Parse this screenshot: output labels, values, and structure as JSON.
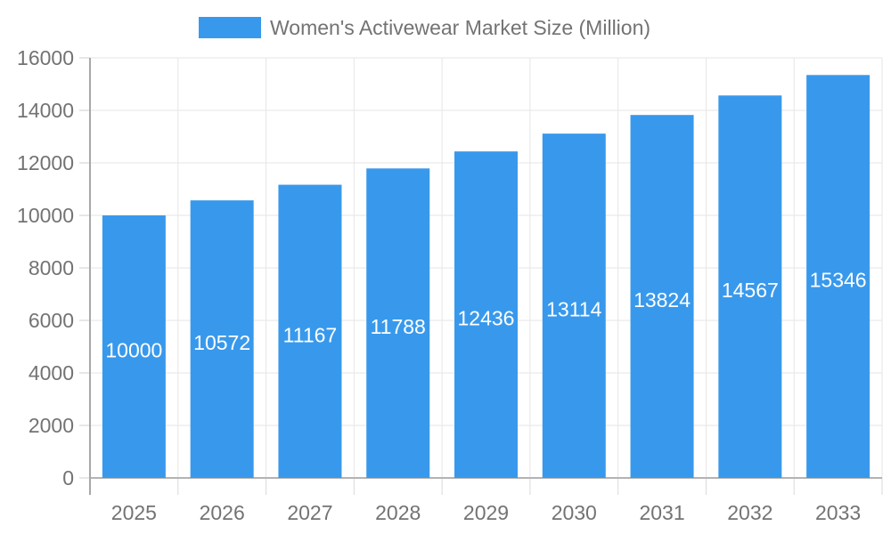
{
  "chart_data": {
    "type": "bar",
    "title": "Women's Activewear Market Size (Million)",
    "legend": {
      "position": "top",
      "entries": [
        {
          "label": "Women's Activewear Market Size (Million)",
          "color": "#3899EC"
        }
      ]
    },
    "categories": [
      "2025",
      "2026",
      "2027",
      "2028",
      "2029",
      "2030",
      "2031",
      "2032",
      "2033"
    ],
    "values": [
      10000,
      10572,
      11167,
      11788,
      12436,
      13114,
      13824,
      14567,
      15346
    ],
    "xlabel": "",
    "ylabel": "",
    "ylim": [
      0,
      16000
    ],
    "yticks": [
      0,
      2000,
      4000,
      6000,
      8000,
      10000,
      12000,
      14000,
      16000
    ],
    "grid": true,
    "bar_labels_inside": true,
    "colors": {
      "bar": "#3899EC",
      "bar_label": "#FFFFFF",
      "grid": "#E6E6E6",
      "axis_line": "#A8A8A8",
      "zero_line": "#B3B3B3",
      "tick": "#CFCFCF",
      "x_tick": "#D9D9D9",
      "text": "#737373",
      "background": "#FFFFFF"
    }
  }
}
